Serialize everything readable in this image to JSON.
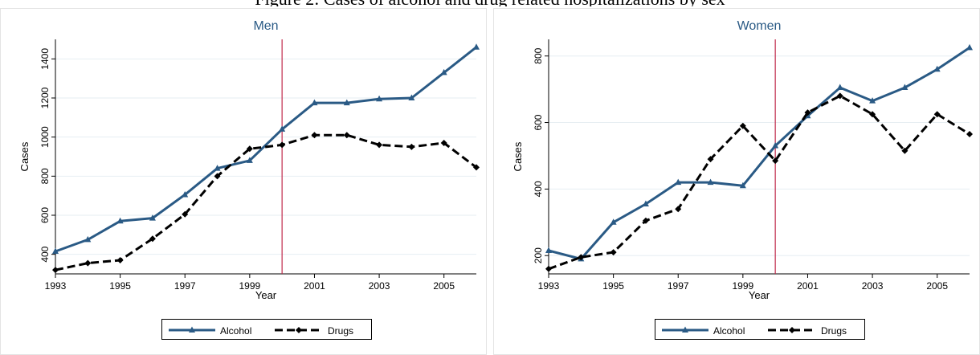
{
  "header": {
    "caption": "Figure 2: Cases of alcohol and drug related hospitalizations by sex"
  },
  "chart_data": [
    {
      "type": "line",
      "title": "Men",
      "xlabel": "Year",
      "ylabel": "Cases",
      "xlim": [
        1993,
        2006
      ],
      "ylim": [
        300,
        1500
      ],
      "x_ticks": [
        1993,
        1995,
        1997,
        1999,
        2001,
        2003,
        2005
      ],
      "y_ticks": [
        400,
        600,
        800,
        1000,
        1200,
        1400
      ],
      "grid": true,
      "legend": "bottom",
      "reference_line_x": 2000,
      "colors": {
        "alcohol": "#2a5a85",
        "drugs": "#000000",
        "reference": "#c0284a",
        "grid": "#e6eef2"
      },
      "x": [
        1993,
        1994,
        1995,
        1996,
        1997,
        1998,
        1999,
        2000,
        2001,
        2002,
        2003,
        2004,
        2005,
        2006
      ],
      "series": [
        {
          "name": "Alcohol",
          "values": [
            415,
            475,
            570,
            585,
            705,
            840,
            880,
            1040,
            1175,
            1175,
            1195,
            1200,
            1330,
            1460
          ]
        },
        {
          "name": "Drugs",
          "values": [
            320,
            355,
            370,
            480,
            605,
            800,
            940,
            960,
            1010,
            1010,
            960,
            950,
            970,
            845
          ]
        }
      ]
    },
    {
      "type": "line",
      "title": "Women",
      "xlabel": "Year",
      "ylabel": "Cases",
      "xlim": [
        1993,
        2006
      ],
      "ylim": [
        145,
        850
      ],
      "x_ticks": [
        1993,
        1995,
        1997,
        1999,
        2001,
        2003,
        2005
      ],
      "y_ticks": [
        200,
        400,
        600,
        800
      ],
      "grid": true,
      "legend": "bottom",
      "reference_line_x": 2000,
      "colors": {
        "alcohol": "#2a5a85",
        "drugs": "#000000",
        "reference": "#c0284a",
        "grid": "#e6eef2"
      },
      "x": [
        1993,
        1994,
        1995,
        1996,
        1997,
        1998,
        1999,
        2000,
        2001,
        2002,
        2003,
        2004,
        2005,
        2006
      ],
      "series": [
        {
          "name": "Alcohol",
          "values": [
            215,
            190,
            300,
            355,
            420,
            420,
            410,
            530,
            620,
            705,
            665,
            705,
            760,
            825
          ]
        },
        {
          "name": "Drugs",
          "values": [
            160,
            195,
            210,
            305,
            340,
            490,
            590,
            485,
            630,
            680,
            625,
            515,
            625,
            565
          ]
        }
      ]
    }
  ]
}
